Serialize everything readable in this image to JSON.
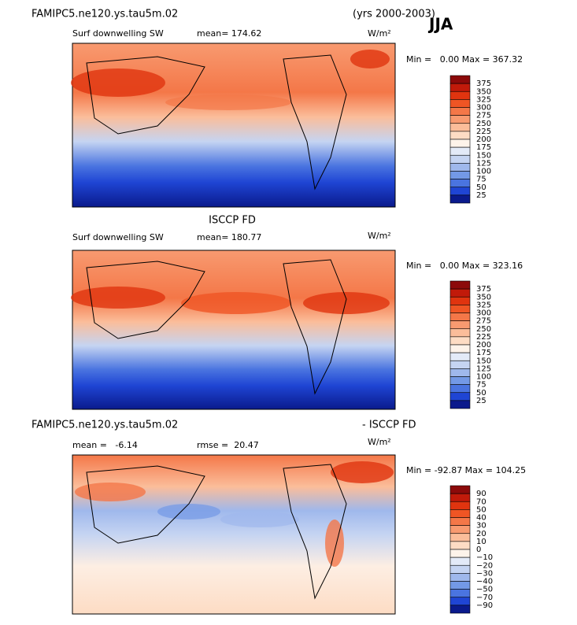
{
  "header": {
    "run": "FAMIPC5.ne120.ys.tau5m.02",
    "years": "(yrs 2000-2003)",
    "season": "JJA"
  },
  "panels": [
    {
      "field": "Surf downwelling SW",
      "mean": "mean= 174.62",
      "units": "W/m²",
      "minmax": "Min =   0.00 Max = 367.32",
      "colorbar": [
        "375",
        "350",
        "325",
        "300",
        "275",
        "250",
        "225",
        "200",
        "175",
        "150",
        "125",
        "100",
        "75",
        "50",
        "25"
      ]
    },
    {
      "title": "ISCCP FD",
      "field": "Surf downwelling SW",
      "mean": "mean= 180.77",
      "units": "W/m²",
      "minmax": "Min =   0.00 Max = 323.16",
      "colorbar": [
        "375",
        "350",
        "325",
        "300",
        "275",
        "250",
        "225",
        "200",
        "175",
        "150",
        "125",
        "100",
        "75",
        "50",
        "25"
      ]
    },
    {
      "title_left": "FAMIPC5.ne120.ys.tau5m.02",
      "title_right": "- ISCCP FD",
      "mean": "mean =   -6.14",
      "rmse": "rmse =  20.47",
      "units": "W/m²",
      "minmax": "Min = -92.87 Max = 104.25",
      "colorbar": [
        "90",
        "70",
        "50",
        "40",
        "30",
        "20",
        "10",
        "0",
        "−10",
        "−20",
        "−30",
        "−40",
        "−50",
        "−70",
        "−90"
      ]
    }
  ]
}
